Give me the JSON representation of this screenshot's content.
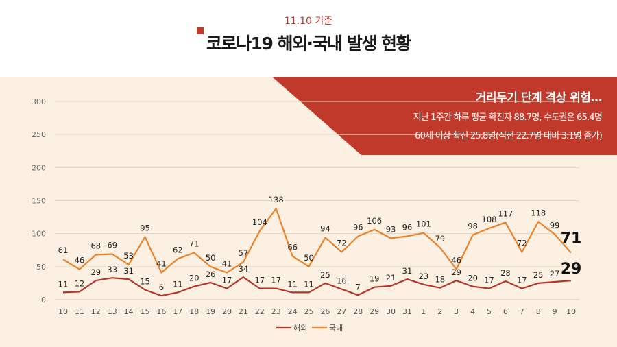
{
  "header": {
    "date_label": "11.10 기준",
    "title": "코로나19 해외·국내 발생 현황"
  },
  "banner": {
    "title": "거리두기 단계 격상 위험…",
    "line1": "지난 1주간 하루 평균 확진자 88.7명, 수도권은 65.4명",
    "line2": "60세 이상 확진 25.8명(직전 22.7명 대비 3.1명 증가)"
  },
  "colors": {
    "overseas": "#b5352b",
    "domestic": "#e8822b",
    "banner": "#c0392b",
    "panel": "#fbf0e1"
  },
  "chart_data": {
    "type": "line",
    "categories": [
      "10",
      "11",
      "12",
      "13",
      "14",
      "15",
      "16",
      "17",
      "18",
      "19",
      "20",
      "21",
      "22",
      "23",
      "24",
      "25",
      "26",
      "27",
      "28",
      "29",
      "30",
      "31",
      "1",
      "2",
      "3",
      "4",
      "5",
      "6",
      "7",
      "8",
      "9",
      "10"
    ],
    "ylim": [
      0,
      300
    ],
    "yticks": [
      "0",
      "50",
      "100",
      "150",
      "200",
      "250",
      "300"
    ],
    "grid": true,
    "legend_position": "bottom",
    "series": [
      {
        "name": "해외",
        "color": "#b5352b",
        "values": [
          11,
          12,
          29,
          33,
          31,
          15,
          6,
          11,
          20,
          26,
          17,
          34,
          17,
          17,
          11,
          11,
          25,
          16,
          7,
          19,
          21,
          31,
          23,
          18,
          29,
          20,
          17,
          28,
          17,
          25,
          27,
          29
        ],
        "labels": [
          "11",
          "12",
          "29",
          "33",
          "31",
          "15",
          "6",
          "11",
          "20",
          "26",
          "17",
          "34",
          "17",
          "17",
          "11",
          "11",
          "25",
          "16",
          "7",
          "19",
          "21",
          "31",
          "23",
          "18",
          "29",
          "20",
          "17",
          "28",
          "17",
          "25",
          "27",
          "29"
        ]
      },
      {
        "name": "국내",
        "color": "#e8822b",
        "values": [
          61,
          46,
          68,
          69,
          53,
          95,
          41,
          62,
          71,
          50,
          41,
          57,
          104,
          138,
          66,
          50,
          94,
          72,
          96,
          106,
          93,
          96,
          101,
          79,
          46,
          98,
          108,
          117,
          72,
          118,
          99,
          71
        ],
        "labels": [
          "61",
          "46",
          "68",
          "69",
          "53",
          "95",
          "41",
          "62",
          "71",
          "50",
          "41",
          "57",
          "104",
          "138",
          "66",
          "50",
          "94",
          "72",
          "96",
          "106",
          "93",
          "96",
          "101",
          "79",
          "46",
          "98",
          "108",
          "117",
          "72",
          "118",
          "99",
          "71"
        ]
      }
    ]
  }
}
